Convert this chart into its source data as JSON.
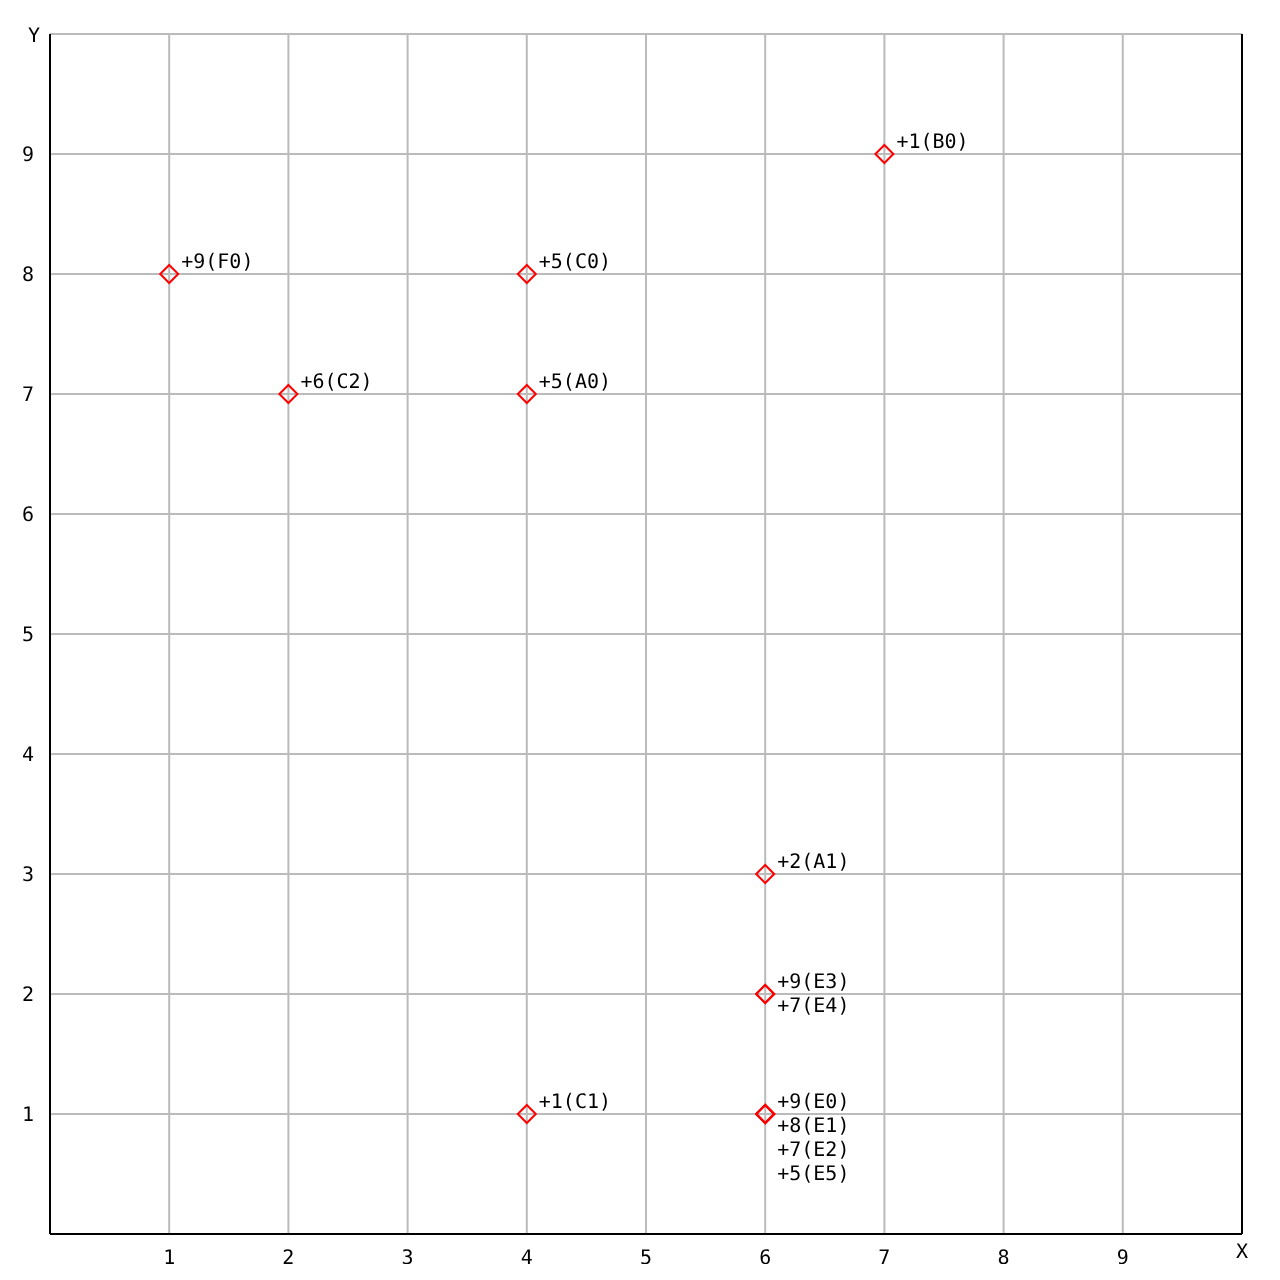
{
  "chart_data": {
    "type": "scatter",
    "xlabel": "X",
    "ylabel": "Y",
    "xlim": [
      0,
      10
    ],
    "ylim": [
      0,
      10
    ],
    "xticks": [
      1,
      2,
      3,
      4,
      5,
      6,
      7,
      8,
      9
    ],
    "yticks": [
      1,
      2,
      3,
      4,
      5,
      6,
      7,
      8,
      9
    ],
    "grid": true,
    "marker": "diamond",
    "series": [
      {
        "color": "#ff0000",
        "x": [
          1,
          4,
          4,
          2,
          7,
          6,
          6,
          6,
          6,
          6,
          6,
          6,
          4
        ],
        "values": [
          8,
          8,
          7,
          7,
          9,
          3,
          2,
          2,
          1,
          1,
          1,
          1,
          1
        ],
        "value_labels": [
          "+9(F0)",
          "+5(C0)",
          "+5(A0)",
          "+6(C2)",
          "+1(B0)",
          "+2(A1)",
          "+9(E3)",
          "+7(E4)",
          "+9(E0)",
          "+8(E1)",
          "+7(E2)",
          "+5(E5)",
          "+1(C1)"
        ]
      }
    ]
  }
}
